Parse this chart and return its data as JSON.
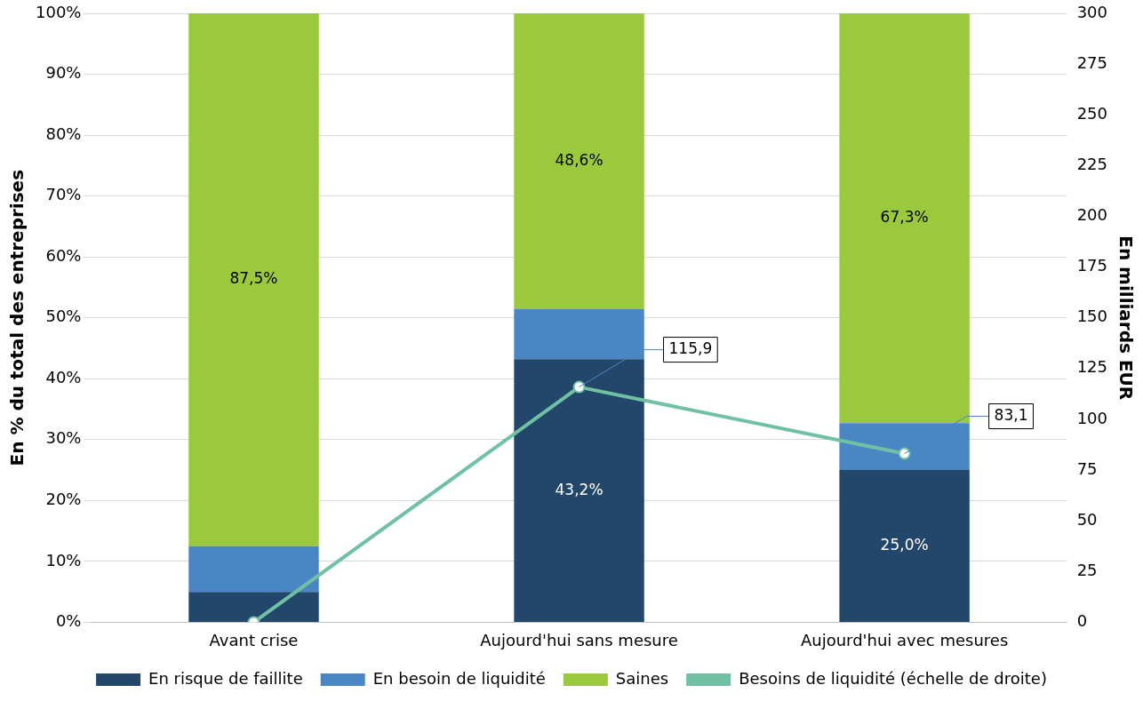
{
  "chart_data": {
    "type": "bar",
    "stacked": true,
    "categories": [
      "Avant crise",
      "Aujourd'hui sans mesure",
      "Aujourd'hui avec mesures"
    ],
    "ylabel": "En % du total des entreprises",
    "y2label": "En milliards EUR",
    "ylim": [
      0,
      100
    ],
    "yticks": [
      {
        "value": 0,
        "label": "0%"
      },
      {
        "value": 10,
        "label": "10%"
      },
      {
        "value": 20,
        "label": "20%"
      },
      {
        "value": 30,
        "label": "30%"
      },
      {
        "value": 40,
        "label": "40%"
      },
      {
        "value": 50,
        "label": "50%"
      },
      {
        "value": 60,
        "label": "60%"
      },
      {
        "value": 70,
        "label": "70%"
      },
      {
        "value": 80,
        "label": "80%"
      },
      {
        "value": 90,
        "label": "90%"
      },
      {
        "value": 100,
        "label": "100%"
      }
    ],
    "y2lim": [
      0,
      300
    ],
    "y2ticks": [
      0,
      25,
      50,
      75,
      100,
      125,
      150,
      175,
      200,
      225,
      250,
      275,
      300
    ],
    "grid": "y",
    "legend": "bottom",
    "series": [
      {
        "name": "En risque de faillite",
        "color": "#22476b",
        "values": [
          5,
          43.2,
          25.0
        ],
        "value_labels": [
          null,
          "43,2%",
          "25,0%"
        ]
      },
      {
        "name": "En besoin de liquidité",
        "color": "#4a86c4",
        "values": [
          7.5,
          8.2,
          7.7
        ]
      },
      {
        "name": "Saines",
        "color": "#9ac93e",
        "values": [
          87.5,
          48.6,
          67.3
        ],
        "value_labels": [
          "87,5%",
          "48,6%",
          "67,3%"
        ]
      },
      {
        "name": "Besoins de liquidité (échelle de droite)",
        "type": "line",
        "axis": "y2",
        "color": "#70c1a4",
        "marker": "circle",
        "values": [
          0,
          115.9,
          83.1
        ],
        "value_labels": [
          null,
          "115,9",
          "83,1"
        ]
      }
    ]
  }
}
